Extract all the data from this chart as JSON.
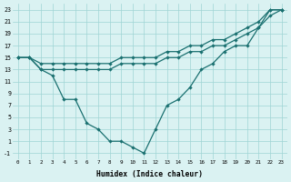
{
  "xlabel": "Humidex (Indice chaleur)",
  "hours": [
    0,
    1,
    2,
    3,
    4,
    5,
    6,
    7,
    8,
    9,
    10,
    11,
    12,
    13,
    14,
    15,
    16,
    17,
    18,
    19,
    20,
    21,
    22,
    23
  ],
  "line_top": [
    15,
    15,
    14,
    14,
    14,
    14,
    14,
    14,
    14,
    15,
    15,
    15,
    15,
    16,
    16,
    17,
    17,
    18,
    18,
    19,
    20,
    21,
    23,
    23
  ],
  "line_mid": [
    15,
    15,
    13,
    13,
    13,
    13,
    13,
    13,
    13,
    14,
    14,
    14,
    14,
    15,
    15,
    16,
    16,
    17,
    17,
    18,
    19,
    20,
    22,
    23
  ],
  "line_bot": [
    15,
    15,
    13,
    12,
    8,
    8,
    4,
    3,
    1,
    1,
    0,
    -1,
    3,
    7,
    8,
    10,
    13,
    14,
    16,
    17,
    17,
    20,
    23,
    23
  ],
  "line_color": "#1a7070",
  "bg_color": "#daf2f2",
  "grid_color": "#9fd4d4",
  "ylim": [
    -2,
    24
  ],
  "xlim": [
    -0.5,
    23.5
  ],
  "yticks": [
    -1,
    1,
    3,
    5,
    7,
    9,
    11,
    13,
    15,
    17,
    19,
    21,
    23
  ],
  "xticks": [
    0,
    1,
    2,
    3,
    4,
    5,
    6,
    7,
    8,
    9,
    10,
    11,
    12,
    13,
    14,
    15,
    16,
    17,
    18,
    19,
    20,
    21,
    22,
    23
  ]
}
